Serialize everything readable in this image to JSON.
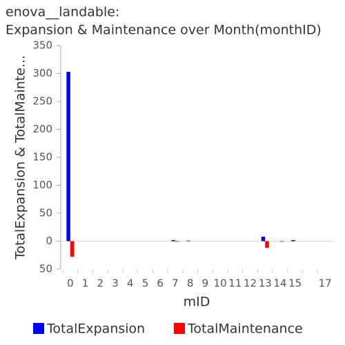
{
  "chart_data": {
    "type": "bar",
    "title": "enova__landable:",
    "subtitle": "Expansion & Maintenance over Month(monthID)",
    "x_label": "mID",
    "y_label": "TotalExpansion & TotalMainte...",
    "categories": [
      "0",
      "1",
      "2",
      "3",
      "4",
      "5",
      "6",
      "7",
      "8",
      "9",
      "10",
      "11",
      "12",
      "13",
      "14",
      "15",
      null,
      "17"
    ],
    "series": [
      {
        "name": "TotalExpansion",
        "color": "#0000ff",
        "values": [
          303,
          0,
          0,
          0,
          0,
          0,
          0,
          2,
          1,
          0,
          0,
          0,
          0,
          8,
          0,
          2,
          0,
          0
        ]
      },
      {
        "name": "TotalMaintenance",
        "color": "#ff0000",
        "values": [
          -28,
          0,
          0,
          0,
          0,
          0,
          0,
          -1,
          0,
          0,
          0,
          0,
          0,
          -12,
          -1,
          0,
          0,
          0
        ]
      }
    ],
    "ylim": [
      -50,
      350
    ],
    "yticks": [
      {
        "value": -50,
        "label": "50"
      },
      0,
      50,
      100,
      150,
      200,
      250,
      300,
      350
    ],
    "legend": "bottom"
  }
}
